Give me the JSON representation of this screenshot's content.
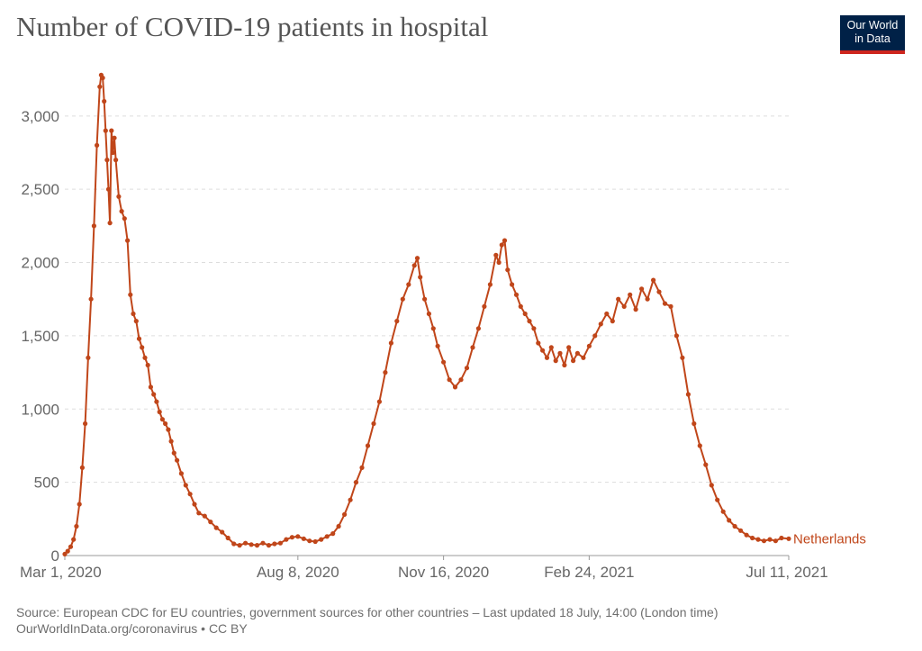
{
  "title": "Number of COVID-19 patients in hospital",
  "logo": {
    "line1": "Our World",
    "line2": "in Data"
  },
  "source": {
    "line1": "Source: European CDC for EU countries, government sources for other countries – Last updated 18 July, 14:00 (London time)",
    "line2": "OurWorldInData.org/coronavirus • CC BY"
  },
  "colors": {
    "series": "#c0461a",
    "grid": "#dddddd",
    "axis": "#999999"
  },
  "chart_data": {
    "type": "line",
    "title": "Number of COVID-19 patients in hospital",
    "x_start": "2020-03-01",
    "x_end": "2021-07-11",
    "ylim": [
      0,
      3300
    ],
    "y_ticks": [
      0,
      500,
      1000,
      1500,
      2000,
      2500,
      3000
    ],
    "y_tick_labels": [
      "0",
      "500",
      "1,000",
      "1,500",
      "2,000",
      "2,500",
      "3,000"
    ],
    "x_ticks": [
      "2020-03-01",
      "2020-08-08",
      "2020-11-16",
      "2021-02-24",
      "2021-07-11"
    ],
    "x_tick_labels": [
      "Mar 1, 2020",
      "Aug 8, 2020",
      "Nov 16, 2020",
      "Feb 24, 2021",
      "Jul 11, 2021"
    ],
    "grid": "horizontal dashed",
    "series": [
      {
        "name": "Netherlands",
        "points": [
          [
            "2020-03-01",
            10
          ],
          [
            "2020-03-03",
            30
          ],
          [
            "2020-03-05",
            60
          ],
          [
            "2020-03-07",
            110
          ],
          [
            "2020-03-09",
            200
          ],
          [
            "2020-03-11",
            350
          ],
          [
            "2020-03-13",
            600
          ],
          [
            "2020-03-15",
            900
          ],
          [
            "2020-03-17",
            1350
          ],
          [
            "2020-03-19",
            1750
          ],
          [
            "2020-03-21",
            2250
          ],
          [
            "2020-03-23",
            2800
          ],
          [
            "2020-03-25",
            3200
          ],
          [
            "2020-03-26",
            3280
          ],
          [
            "2020-03-27",
            3260
          ],
          [
            "2020-03-28",
            3100
          ],
          [
            "2020-03-29",
            2900
          ],
          [
            "2020-03-30",
            2700
          ],
          [
            "2020-03-31",
            2500
          ],
          [
            "2020-04-01",
            2270
          ],
          [
            "2020-04-02",
            2900
          ],
          [
            "2020-04-03",
            2750
          ],
          [
            "2020-04-04",
            2850
          ],
          [
            "2020-04-05",
            2700
          ],
          [
            "2020-04-07",
            2450
          ],
          [
            "2020-04-09",
            2350
          ],
          [
            "2020-04-11",
            2300
          ],
          [
            "2020-04-13",
            2150
          ],
          [
            "2020-04-15",
            1780
          ],
          [
            "2020-04-17",
            1650
          ],
          [
            "2020-04-19",
            1600
          ],
          [
            "2020-04-21",
            1480
          ],
          [
            "2020-04-23",
            1420
          ],
          [
            "2020-04-25",
            1350
          ],
          [
            "2020-04-27",
            1300
          ],
          [
            "2020-04-29",
            1150
          ],
          [
            "2020-05-01",
            1100
          ],
          [
            "2020-05-03",
            1050
          ],
          [
            "2020-05-05",
            980
          ],
          [
            "2020-05-07",
            930
          ],
          [
            "2020-05-09",
            900
          ],
          [
            "2020-05-11",
            860
          ],
          [
            "2020-05-13",
            780
          ],
          [
            "2020-05-15",
            700
          ],
          [
            "2020-05-17",
            650
          ],
          [
            "2020-05-20",
            560
          ],
          [
            "2020-05-23",
            480
          ],
          [
            "2020-05-26",
            420
          ],
          [
            "2020-05-29",
            350
          ],
          [
            "2020-06-01",
            290
          ],
          [
            "2020-06-05",
            270
          ],
          [
            "2020-06-09",
            230
          ],
          [
            "2020-06-13",
            190
          ],
          [
            "2020-06-17",
            160
          ],
          [
            "2020-06-21",
            120
          ],
          [
            "2020-06-25",
            80
          ],
          [
            "2020-06-29",
            70
          ],
          [
            "2020-07-03",
            85
          ],
          [
            "2020-07-07",
            75
          ],
          [
            "2020-07-11",
            70
          ],
          [
            "2020-07-15",
            85
          ],
          [
            "2020-07-19",
            70
          ],
          [
            "2020-07-23",
            80
          ],
          [
            "2020-07-27",
            85
          ],
          [
            "2020-07-31",
            110
          ],
          [
            "2020-08-04",
            125
          ],
          [
            "2020-08-08",
            130
          ],
          [
            "2020-08-12",
            115
          ],
          [
            "2020-08-16",
            100
          ],
          [
            "2020-08-20",
            95
          ],
          [
            "2020-08-24",
            110
          ],
          [
            "2020-08-28",
            130
          ],
          [
            "2020-09-01",
            150
          ],
          [
            "2020-09-05",
            200
          ],
          [
            "2020-09-09",
            280
          ],
          [
            "2020-09-13",
            380
          ],
          [
            "2020-09-17",
            500
          ],
          [
            "2020-09-21",
            600
          ],
          [
            "2020-09-25",
            750
          ],
          [
            "2020-09-29",
            900
          ],
          [
            "2020-10-03",
            1050
          ],
          [
            "2020-10-07",
            1250
          ],
          [
            "2020-10-11",
            1450
          ],
          [
            "2020-10-15",
            1600
          ],
          [
            "2020-10-19",
            1750
          ],
          [
            "2020-10-23",
            1850
          ],
          [
            "2020-10-27",
            1980
          ],
          [
            "2020-10-29",
            2030
          ],
          [
            "2020-10-31",
            1900
          ],
          [
            "2020-11-03",
            1750
          ],
          [
            "2020-11-06",
            1650
          ],
          [
            "2020-11-09",
            1550
          ],
          [
            "2020-11-12",
            1430
          ],
          [
            "2020-11-16",
            1320
          ],
          [
            "2020-11-20",
            1200
          ],
          [
            "2020-11-24",
            1150
          ],
          [
            "2020-11-28",
            1200
          ],
          [
            "2020-12-02",
            1280
          ],
          [
            "2020-12-06",
            1420
          ],
          [
            "2020-12-10",
            1550
          ],
          [
            "2020-12-14",
            1700
          ],
          [
            "2020-12-18",
            1850
          ],
          [
            "2020-12-22",
            2050
          ],
          [
            "2020-12-24",
            2000
          ],
          [
            "2020-12-26",
            2120
          ],
          [
            "2020-12-28",
            2150
          ],
          [
            "2020-12-30",
            1950
          ],
          [
            "2021-01-02",
            1850
          ],
          [
            "2021-01-05",
            1780
          ],
          [
            "2021-01-08",
            1700
          ],
          [
            "2021-01-11",
            1650
          ],
          [
            "2021-01-14",
            1600
          ],
          [
            "2021-01-17",
            1550
          ],
          [
            "2021-01-20",
            1450
          ],
          [
            "2021-01-23",
            1400
          ],
          [
            "2021-01-26",
            1350
          ],
          [
            "2021-01-29",
            1420
          ],
          [
            "2021-02-01",
            1330
          ],
          [
            "2021-02-04",
            1380
          ],
          [
            "2021-02-07",
            1300
          ],
          [
            "2021-02-10",
            1420
          ],
          [
            "2021-02-13",
            1330
          ],
          [
            "2021-02-16",
            1380
          ],
          [
            "2021-02-20",
            1350
          ],
          [
            "2021-02-24",
            1430
          ],
          [
            "2021-02-28",
            1500
          ],
          [
            "2021-03-04",
            1580
          ],
          [
            "2021-03-08",
            1650
          ],
          [
            "2021-03-12",
            1600
          ],
          [
            "2021-03-16",
            1750
          ],
          [
            "2021-03-20",
            1700
          ],
          [
            "2021-03-24",
            1780
          ],
          [
            "2021-03-28",
            1680
          ],
          [
            "2021-04-01",
            1820
          ],
          [
            "2021-04-05",
            1750
          ],
          [
            "2021-04-09",
            1880
          ],
          [
            "2021-04-13",
            1800
          ],
          [
            "2021-04-17",
            1720
          ],
          [
            "2021-04-21",
            1700
          ],
          [
            "2021-04-25",
            1500
          ],
          [
            "2021-04-29",
            1350
          ],
          [
            "2021-05-03",
            1100
          ],
          [
            "2021-05-07",
            900
          ],
          [
            "2021-05-11",
            750
          ],
          [
            "2021-05-15",
            620
          ],
          [
            "2021-05-19",
            480
          ],
          [
            "2021-05-23",
            380
          ],
          [
            "2021-05-27",
            300
          ],
          [
            "2021-05-31",
            240
          ],
          [
            "2021-06-04",
            200
          ],
          [
            "2021-06-08",
            170
          ],
          [
            "2021-06-12",
            140
          ],
          [
            "2021-06-16",
            120
          ],
          [
            "2021-06-20",
            110
          ],
          [
            "2021-06-24",
            100
          ],
          [
            "2021-06-28",
            110
          ],
          [
            "2021-07-02",
            100
          ],
          [
            "2021-07-06",
            120
          ],
          [
            "2021-07-11",
            115
          ]
        ]
      }
    ]
  }
}
